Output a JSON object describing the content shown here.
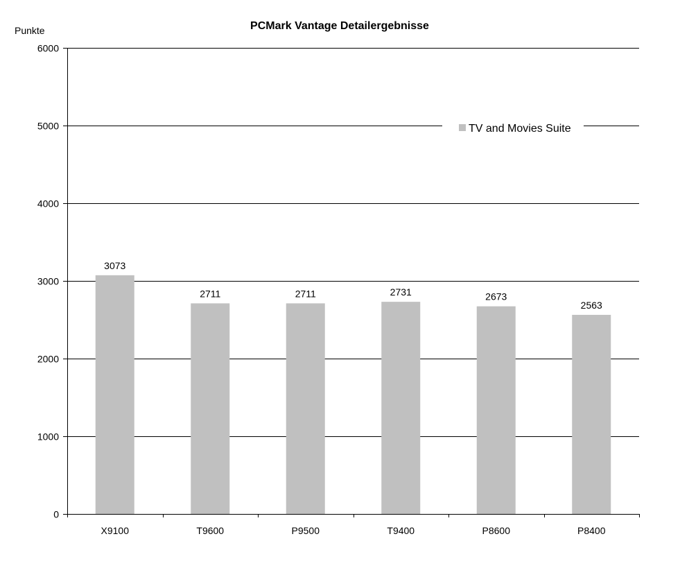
{
  "chart_data": {
    "type": "bar",
    "title": "PCMark Vantage Detailergebnisse",
    "ylabel": "Punkte",
    "xlabel": "",
    "categories": [
      "X9100",
      "T9600",
      "P9500",
      "T9400",
      "P8600",
      "P8400"
    ],
    "series": [
      {
        "name": "TV and Movies Suite",
        "values": [
          3073,
          2711,
          2711,
          2731,
          2673,
          2563
        ],
        "color": "#c0c0c0"
      }
    ],
    "ylim": [
      0,
      6000
    ],
    "yticks": [
      0,
      1000,
      2000,
      3000,
      4000,
      5000,
      6000
    ],
    "grid": true,
    "legend_position": "top-right",
    "data_labels": true
  }
}
